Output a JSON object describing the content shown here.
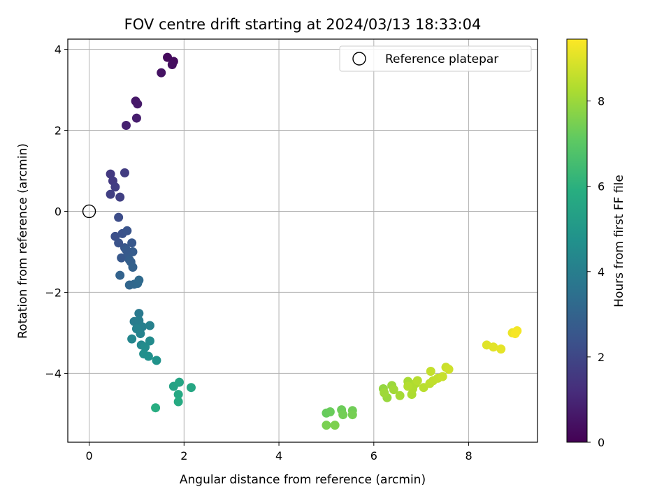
{
  "chart_data": {
    "type": "scatter",
    "title": "FOV centre drift starting at 2024/03/13 18:33:04",
    "xlabel": "Angular distance from reference (arcmin)",
    "ylabel": "Rotation from reference (arcmin)",
    "xlim": [
      -0.45,
      9.45
    ],
    "ylim": [
      -5.7,
      4.25
    ],
    "xticks": [
      0,
      2,
      4,
      6,
      8
    ],
    "yticks": [
      -4,
      -2,
      0,
      2,
      4
    ],
    "grid": true,
    "legend": {
      "placement": "top-right",
      "entries": [
        "Reference platepar"
      ]
    },
    "reference_point": {
      "label": "Reference platepar",
      "x": 0,
      "y": 0
    },
    "colorbar": {
      "label": "Hours from first FF file",
      "colormap": "viridis",
      "range": [
        0,
        9.45
      ],
      "ticks": [
        0,
        2,
        4,
        6,
        8
      ]
    },
    "series": [
      {
        "x": [
          1.65,
          1.78,
          1.75,
          1.52,
          0.98,
          1.02,
          1.0,
          0.78,
          0.45,
          0.5,
          0.55,
          0.45,
          0.65,
          0.75,
          0.62,
          0.55,
          0.62,
          0.7,
          0.8,
          0.9,
          0.75,
          0.68,
          0.82,
          0.92,
          0.85,
          0.78,
          0.88,
          0.92,
          0.65,
          0.85,
          0.95,
          1.02,
          1.05,
          1.05,
          0.95,
          1.05,
          1.12,
          1.28,
          1.0,
          1.08,
          0.9,
          1.1,
          1.28,
          1.18,
          1.15,
          1.25,
          1.42,
          1.78,
          1.9,
          2.15,
          1.88,
          1.88,
          1.4,
          5.0,
          5.08,
          5.32,
          5.55,
          5.35,
          5.55,
          5.0,
          5.18,
          6.2,
          6.28,
          6.38,
          6.22,
          6.42,
          6.55,
          6.72,
          6.8,
          6.88,
          6.82,
          6.72,
          6.92,
          7.05,
          7.18,
          7.25,
          7.35,
          7.45,
          7.2,
          7.52,
          7.58,
          8.38,
          8.52,
          8.68,
          8.92,
          9.02,
          8.98
        ],
        "y": [
          3.8,
          3.7,
          3.62,
          3.42,
          2.72,
          2.65,
          2.3,
          2.12,
          0.92,
          0.75,
          0.6,
          0.42,
          0.35,
          0.95,
          -0.15,
          -0.62,
          -0.78,
          -0.55,
          -0.48,
          -0.78,
          -0.9,
          -1.15,
          -1.05,
          -1.0,
          -1.2,
          -0.95,
          -1.25,
          -1.38,
          -1.58,
          -1.82,
          -1.8,
          -1.78,
          -1.7,
          -2.52,
          -2.72,
          -2.7,
          -2.85,
          -2.82,
          -2.9,
          -3.02,
          -3.15,
          -3.3,
          -3.2,
          -3.35,
          -3.52,
          -3.58,
          -3.68,
          -4.32,
          -4.22,
          -4.35,
          -4.52,
          -4.7,
          -4.85,
          -4.98,
          -4.95,
          -4.9,
          -4.92,
          -5.02,
          -5.02,
          -5.28,
          -5.28,
          -4.38,
          -4.6,
          -4.3,
          -4.48,
          -4.4,
          -4.55,
          -4.2,
          -4.52,
          -4.25,
          -4.38,
          -4.32,
          -4.18,
          -4.35,
          -4.25,
          -4.18,
          -4.12,
          -4.08,
          -3.95,
          -3.85,
          -3.9,
          -3.3,
          -3.35,
          -3.4,
          -3.0,
          -2.95,
          -3.02
        ],
        "hours": [
          0.25,
          0.28,
          0.35,
          0.45,
          0.6,
          0.65,
          0.75,
          0.85,
          1.55,
          1.6,
          1.68,
          1.75,
          1.8,
          1.65,
          2.2,
          2.3,
          2.4,
          2.35,
          2.45,
          2.6,
          2.5,
          2.6,
          2.7,
          2.75,
          2.8,
          2.65,
          2.85,
          2.9,
          3.0,
          3.1,
          3.15,
          3.2,
          3.25,
          3.8,
          3.9,
          3.95,
          4.05,
          4.1,
          4.15,
          4.2,
          4.3,
          4.4,
          4.5,
          4.55,
          4.65,
          4.7,
          4.8,
          5.4,
          5.5,
          5.6,
          5.65,
          5.75,
          5.85,
          7.2,
          7.25,
          7.3,
          7.35,
          7.4,
          7.45,
          7.5,
          7.55,
          7.9,
          7.95,
          8.0,
          8.05,
          8.1,
          8.15,
          8.2,
          8.25,
          8.3,
          8.3,
          8.35,
          8.4,
          8.45,
          8.5,
          8.55,
          8.6,
          8.65,
          8.6,
          8.7,
          8.75,
          9.0,
          9.05,
          9.1,
          9.2,
          9.3,
          9.35
        ]
      }
    ]
  }
}
